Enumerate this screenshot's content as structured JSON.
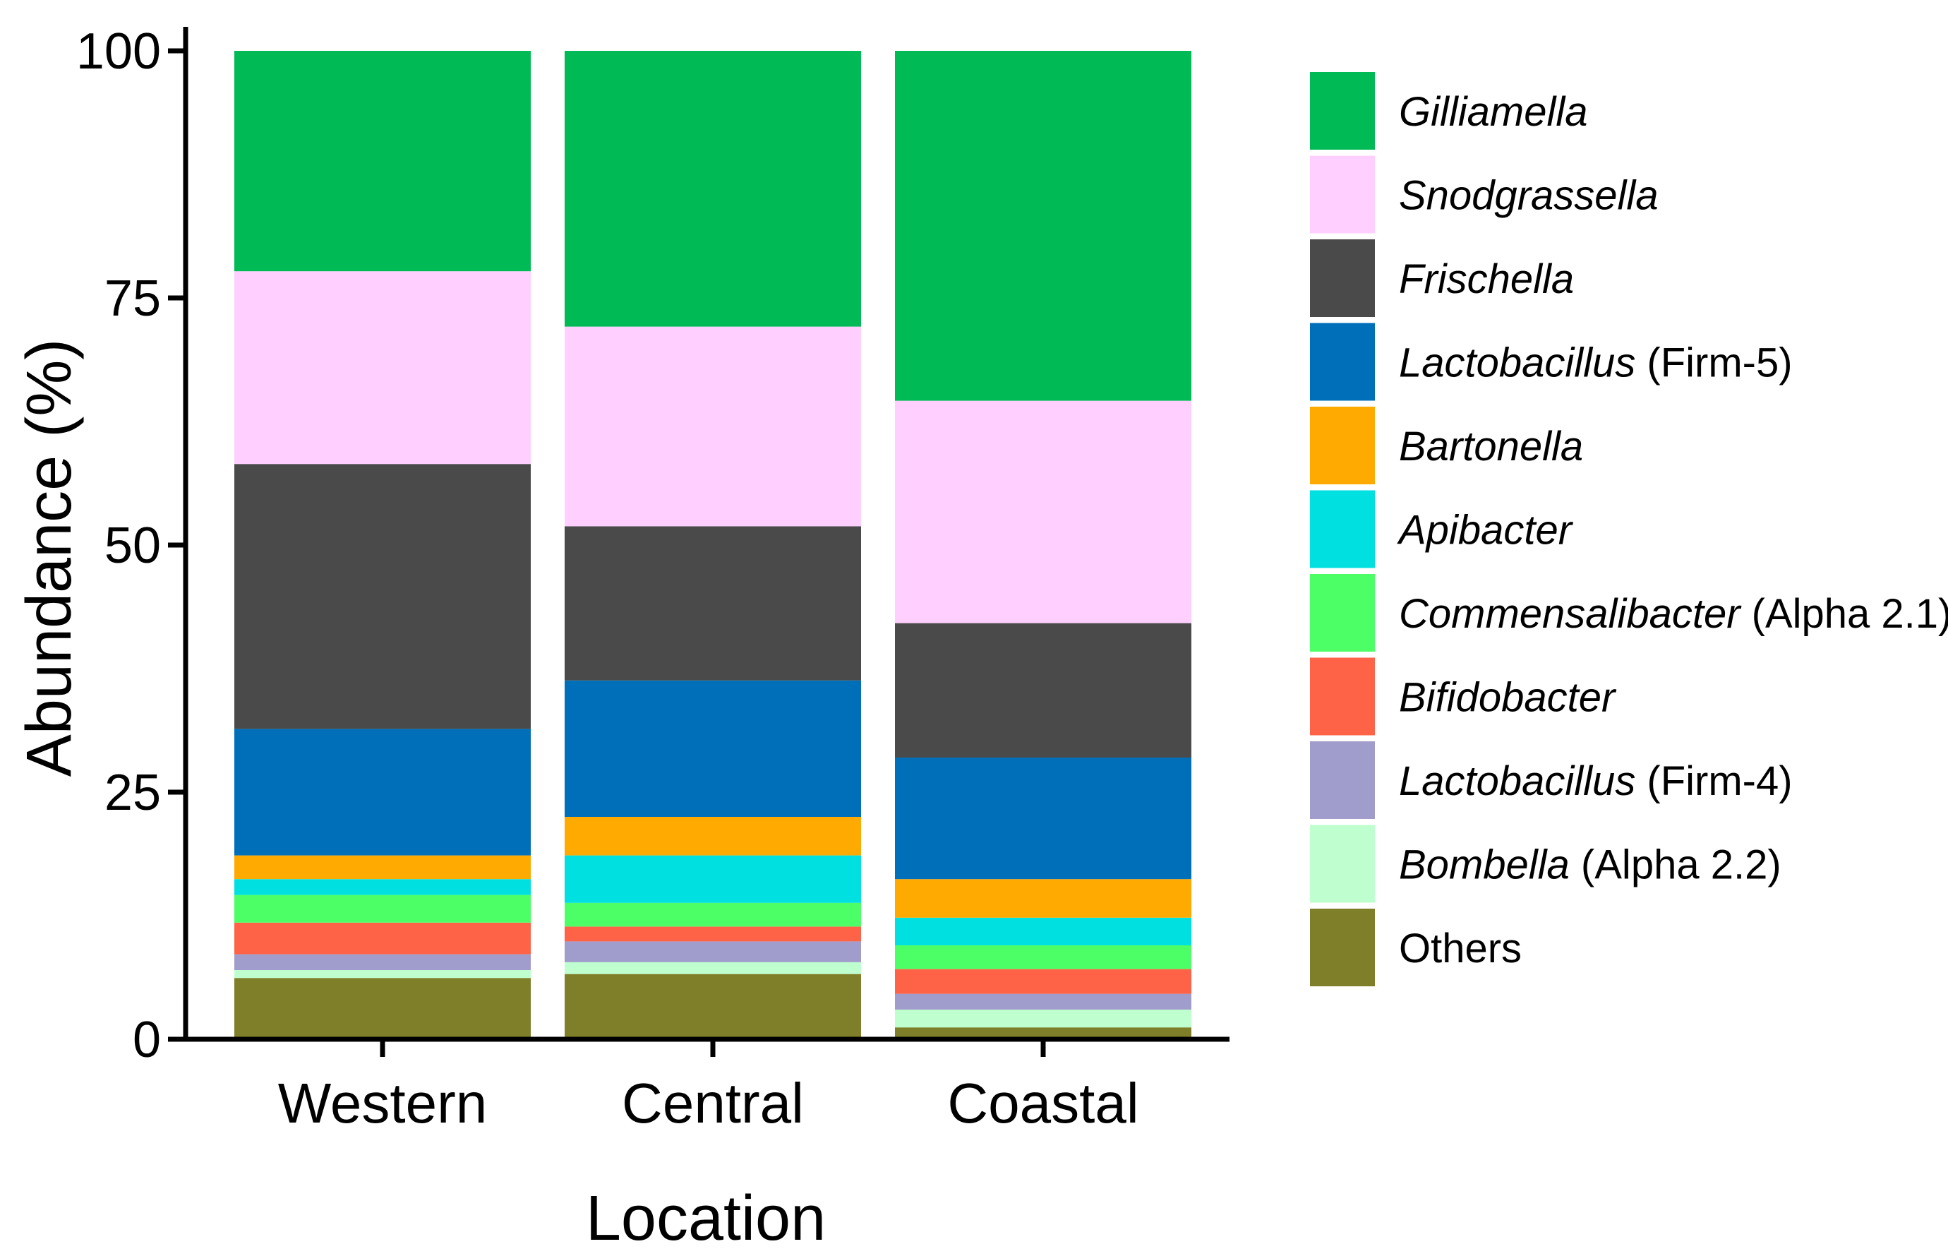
{
  "chart_data": {
    "type": "bar",
    "stacked": true,
    "xlabel": "Location",
    "ylabel": "Abundance (%)",
    "ylim": [
      0,
      100
    ],
    "yticks": [
      "0",
      "25",
      "50",
      "75",
      "100"
    ],
    "categories": [
      "Western",
      "Central",
      "Coastal"
    ],
    "legend_position": "right",
    "series": [
      {
        "name": "Others",
        "italic": "",
        "suffix": "Others",
        "color": "#7f7f2a",
        "values": [
          6.2,
          6.6,
          1.2
        ]
      },
      {
        "name": "Bombella (Alpha 2.2)",
        "italic": "Bombella",
        "suffix": " (Alpha 2.2)",
        "color": "#bfffcf",
        "values": [
          0.8,
          1.2,
          1.8
        ]
      },
      {
        "name": "Lactobacillus (Firm-4)",
        "italic": "Lactobacillus",
        "suffix": " (Firm-4)",
        "color": "#a09ccb",
        "values": [
          1.6,
          2.1,
          1.6
        ]
      },
      {
        "name": "Bifidobacter",
        "italic": "Bifidobacter",
        "suffix": "",
        "color": "#ff6347",
        "values": [
          3.2,
          1.5,
          2.5
        ]
      },
      {
        "name": "Commensalibacter (Alpha 2.1)",
        "italic": "Commensalibacter",
        "suffix": " (Alpha 2.1)",
        "color": "#4dff66",
        "values": [
          2.8,
          2.4,
          2.4
        ]
      },
      {
        "name": "Apibacter",
        "italic": "Apibacter",
        "suffix": "",
        "color": "#00e0e0",
        "values": [
          1.6,
          4.8,
          2.8
        ]
      },
      {
        "name": "Bartonella",
        "italic": "Bartonella",
        "suffix": "",
        "color": "#ffaa00",
        "values": [
          2.4,
          3.9,
          3.9
        ]
      },
      {
        "name": "Lactobacillus (Firm-5)",
        "italic": "Lactobacillus",
        "suffix": " (Firm-5)",
        "color": "#006fba",
        "values": [
          12.8,
          13.8,
          12.3
        ]
      },
      {
        "name": "Frischella",
        "italic": "Frischella",
        "suffix": "",
        "color": "#4a4a4a",
        "values": [
          26.8,
          15.6,
          13.6
        ]
      },
      {
        "name": "Snodgrassella",
        "italic": "Snodgrassella",
        "suffix": "",
        "color": "#ffd0ff",
        "values": [
          19.5,
          20.2,
          22.5
        ]
      },
      {
        "name": "Gilliamella",
        "italic": "Gilliamella",
        "suffix": "",
        "color": "#00bb55",
        "values": [
          22.3,
          27.9,
          35.4
        ]
      }
    ],
    "legend_order": [
      "Gilliamella",
      "Snodgrassella",
      "Frischella",
      "Lactobacillus (Firm-5)",
      "Bartonella",
      "Apibacter",
      "Commensalibacter (Alpha 2.1)",
      "Bifidobacter",
      "Lactobacillus (Firm-4)",
      "Bombella (Alpha 2.2)",
      "Others"
    ]
  }
}
